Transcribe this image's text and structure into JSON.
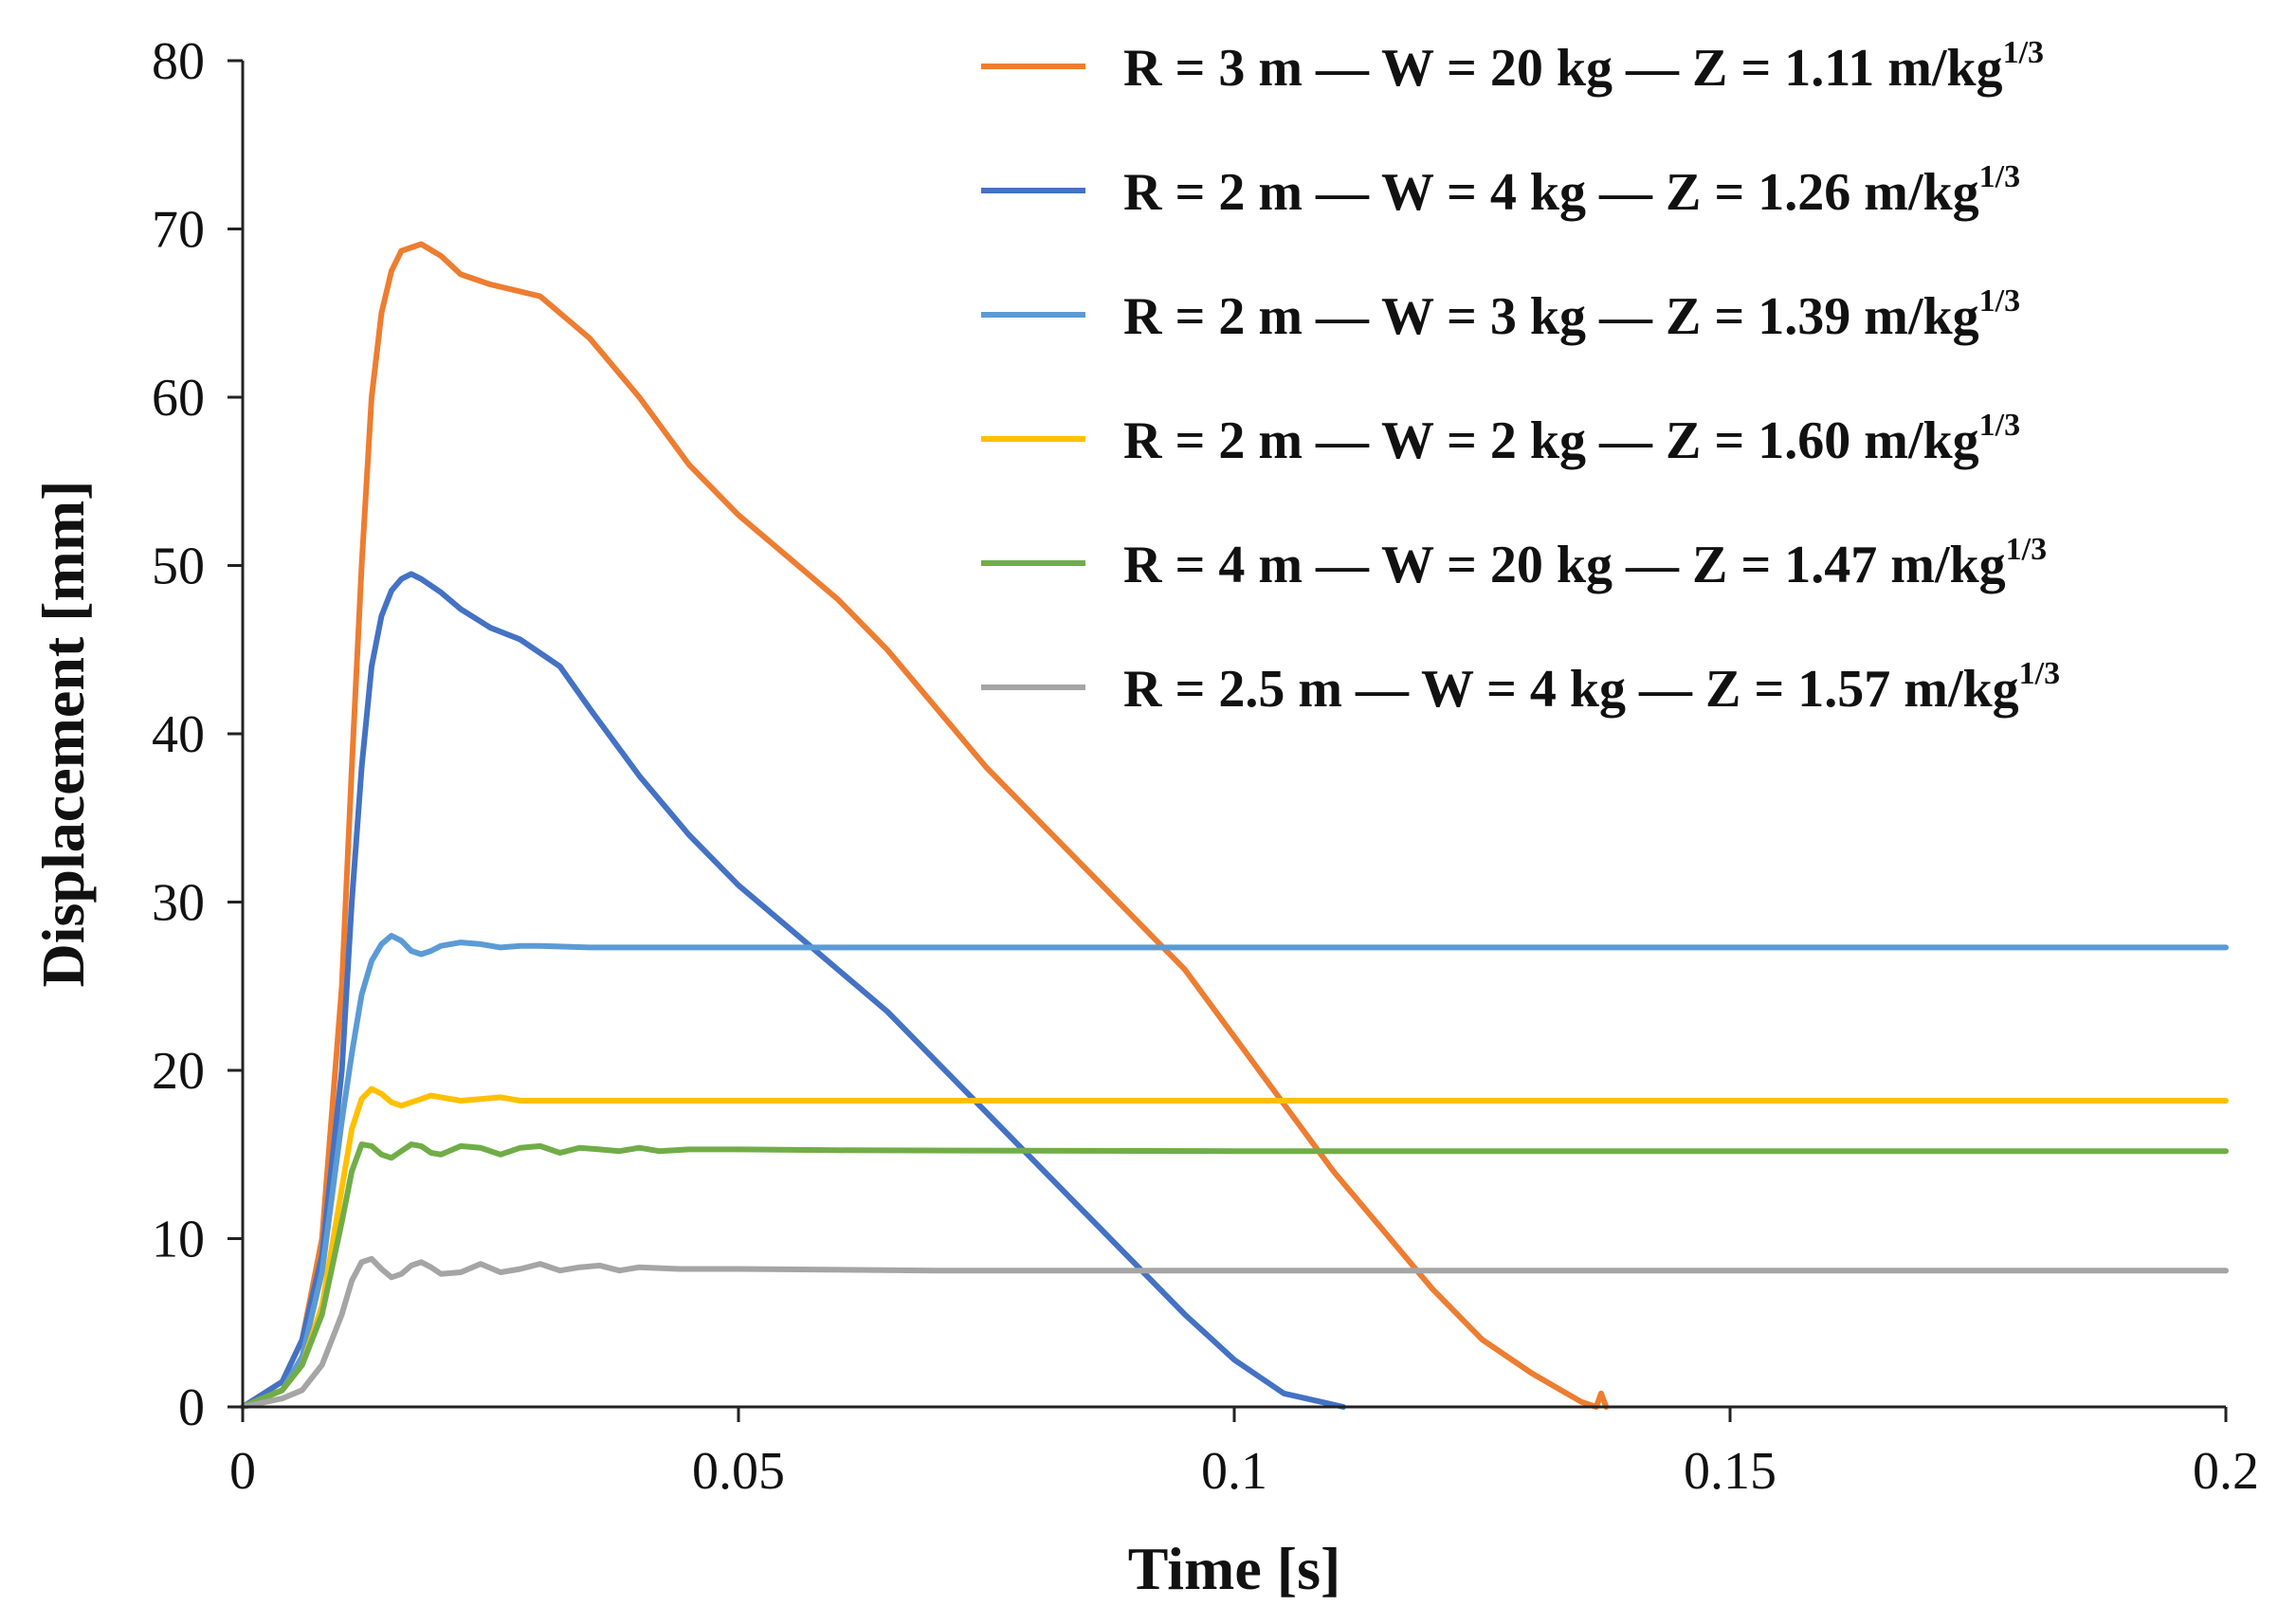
{
  "chart_data": {
    "type": "line",
    "title": "",
    "xlabel": "Time [s]",
    "ylabel": "Displacement [mm]",
    "xlim": [
      0,
      0.2
    ],
    "ylim": [
      0,
      80
    ],
    "x_ticks": [
      0,
      0.05,
      0.1,
      0.15,
      0.2
    ],
    "x_tick_labels": [
      "0",
      "0.05",
      "0.1",
      "0.15",
      "0.2"
    ],
    "y_ticks": [
      0,
      10,
      20,
      30,
      40,
      50,
      60,
      70,
      80
    ],
    "y_tick_labels": [
      "0",
      "10",
      "20",
      "30",
      "40",
      "50",
      "60",
      "70",
      "80"
    ],
    "grid": false,
    "legend_position": "top-right",
    "series": [
      {
        "name": "R = 3 m — W = 20 kg — Z = 1.11 m/kg",
        "name_sup": "1/3",
        "color": "#ED7D31",
        "points": [
          [
            0,
            0
          ],
          [
            0.004,
            1.5
          ],
          [
            0.006,
            4
          ],
          [
            0.008,
            10
          ],
          [
            0.01,
            25
          ],
          [
            0.011,
            38
          ],
          [
            0.012,
            50
          ],
          [
            0.013,
            60
          ],
          [
            0.014,
            65
          ],
          [
            0.015,
            67.5
          ],
          [
            0.016,
            68.7
          ],
          [
            0.018,
            69.1
          ],
          [
            0.02,
            68.4
          ],
          [
            0.022,
            67.3
          ],
          [
            0.025,
            66.7
          ],
          [
            0.03,
            66.0
          ],
          [
            0.035,
            63.5
          ],
          [
            0.04,
            60
          ],
          [
            0.045,
            56
          ],
          [
            0.05,
            53
          ],
          [
            0.055,
            50.5
          ],
          [
            0.06,
            48
          ],
          [
            0.065,
            45
          ],
          [
            0.07,
            41.5
          ],
          [
            0.075,
            38
          ],
          [
            0.08,
            35
          ],
          [
            0.085,
            32
          ],
          [
            0.09,
            29
          ],
          [
            0.095,
            26
          ],
          [
            0.1,
            22
          ],
          [
            0.105,
            18
          ],
          [
            0.11,
            14
          ],
          [
            0.115,
            10.5
          ],
          [
            0.12,
            7
          ],
          [
            0.125,
            4
          ],
          [
            0.13,
            2
          ],
          [
            0.135,
            0.3
          ],
          [
            0.1365,
            0
          ],
          [
            0.137,
            0.8
          ],
          [
            0.1375,
            0
          ]
        ]
      },
      {
        "name": "R = 2 m — W = 4 kg — Z = 1.26 m/kg",
        "name_sup": "1/3",
        "color": "#4472C4",
        "points": [
          [
            0,
            0
          ],
          [
            0.004,
            1.5
          ],
          [
            0.006,
            4
          ],
          [
            0.008,
            9
          ],
          [
            0.01,
            20
          ],
          [
            0.011,
            30
          ],
          [
            0.012,
            38
          ],
          [
            0.013,
            44
          ],
          [
            0.014,
            47
          ],
          [
            0.015,
            48.5
          ],
          [
            0.016,
            49.2
          ],
          [
            0.017,
            49.5
          ],
          [
            0.018,
            49.2
          ],
          [
            0.02,
            48.4
          ],
          [
            0.022,
            47.4
          ],
          [
            0.025,
            46.3
          ],
          [
            0.028,
            45.6
          ],
          [
            0.032,
            44
          ],
          [
            0.035,
            41.5
          ],
          [
            0.04,
            37.5
          ],
          [
            0.045,
            34
          ],
          [
            0.05,
            31
          ],
          [
            0.055,
            28.5
          ],
          [
            0.06,
            26
          ],
          [
            0.065,
            23.5
          ],
          [
            0.07,
            20.5
          ],
          [
            0.075,
            17.5
          ],
          [
            0.08,
            14.5
          ],
          [
            0.085,
            11.5
          ],
          [
            0.09,
            8.5
          ],
          [
            0.095,
            5.5
          ],
          [
            0.1,
            2.8
          ],
          [
            0.105,
            0.8
          ],
          [
            0.111,
            0
          ]
        ]
      },
      {
        "name": "R = 2 m — W = 3 kg — Z = 1.39 m/kg",
        "name_sup": "1/3",
        "color": "#5B9BD5",
        "points": [
          [
            0,
            0
          ],
          [
            0.004,
            1
          ],
          [
            0.006,
            3
          ],
          [
            0.008,
            8
          ],
          [
            0.01,
            17
          ],
          [
            0.011,
            21
          ],
          [
            0.012,
            24.5
          ],
          [
            0.013,
            26.5
          ],
          [
            0.014,
            27.5
          ],
          [
            0.015,
            28
          ],
          [
            0.016,
            27.7
          ],
          [
            0.017,
            27.1
          ],
          [
            0.018,
            26.9
          ],
          [
            0.019,
            27.1
          ],
          [
            0.02,
            27.4
          ],
          [
            0.022,
            27.6
          ],
          [
            0.024,
            27.5
          ],
          [
            0.026,
            27.3
          ],
          [
            0.028,
            27.4
          ],
          [
            0.03,
            27.4
          ],
          [
            0.035,
            27.3
          ],
          [
            0.05,
            27.3
          ],
          [
            0.1,
            27.3
          ],
          [
            0.15,
            27.3
          ],
          [
            0.2,
            27.3
          ]
        ]
      },
      {
        "name": "R = 2 m — W = 2 kg — Z = 1.60 m/kg",
        "name_sup": "1/3",
        "color": "#FFC000",
        "points": [
          [
            0,
            0
          ],
          [
            0.004,
            1
          ],
          [
            0.006,
            2.5
          ],
          [
            0.008,
            6
          ],
          [
            0.01,
            13
          ],
          [
            0.011,
            16.5
          ],
          [
            0.012,
            18.3
          ],
          [
            0.013,
            18.9
          ],
          [
            0.014,
            18.6
          ],
          [
            0.015,
            18.1
          ],
          [
            0.016,
            17.9
          ],
          [
            0.017,
            18.1
          ],
          [
            0.018,
            18.3
          ],
          [
            0.019,
            18.5
          ],
          [
            0.02,
            18.4
          ],
          [
            0.022,
            18.2
          ],
          [
            0.024,
            18.3
          ],
          [
            0.026,
            18.4
          ],
          [
            0.028,
            18.2
          ],
          [
            0.03,
            18.2
          ],
          [
            0.05,
            18.2
          ],
          [
            0.1,
            18.2
          ],
          [
            0.15,
            18.2
          ],
          [
            0.2,
            18.2
          ]
        ]
      },
      {
        "name": "R = 4 m — W = 20 kg — Z = 1.47 m/kg",
        "name_sup": "1/3",
        "color": "#70AD47",
        "points": [
          [
            0,
            0
          ],
          [
            0.004,
            1
          ],
          [
            0.006,
            2.5
          ],
          [
            0.008,
            5.5
          ],
          [
            0.01,
            11
          ],
          [
            0.011,
            14
          ],
          [
            0.012,
            15.6
          ],
          [
            0.013,
            15.5
          ],
          [
            0.014,
            15
          ],
          [
            0.015,
            14.8
          ],
          [
            0.016,
            15.2
          ],
          [
            0.017,
            15.6
          ],
          [
            0.018,
            15.5
          ],
          [
            0.019,
            15.1
          ],
          [
            0.02,
            15
          ],
          [
            0.022,
            15.5
          ],
          [
            0.024,
            15.4
          ],
          [
            0.026,
            15
          ],
          [
            0.028,
            15.4
          ],
          [
            0.03,
            15.5
          ],
          [
            0.032,
            15.1
          ],
          [
            0.034,
            15.4
          ],
          [
            0.036,
            15.3
          ],
          [
            0.038,
            15.2
          ],
          [
            0.04,
            15.4
          ],
          [
            0.042,
            15.2
          ],
          [
            0.045,
            15.3
          ],
          [
            0.05,
            15.3
          ],
          [
            0.06,
            15.25
          ],
          [
            0.1,
            15.2
          ],
          [
            0.15,
            15.2
          ],
          [
            0.2,
            15.2
          ]
        ]
      },
      {
        "name": "R = 2.5 m — W = 4 kg — Z = 1.57 m/kg",
        "name_sup": "1/3",
        "color": "#A5A5A5",
        "points": [
          [
            0,
            0
          ],
          [
            0.004,
            0.5
          ],
          [
            0.006,
            1
          ],
          [
            0.008,
            2.5
          ],
          [
            0.01,
            5.5
          ],
          [
            0.011,
            7.5
          ],
          [
            0.012,
            8.6
          ],
          [
            0.013,
            8.8
          ],
          [
            0.014,
            8.2
          ],
          [
            0.015,
            7.7
          ],
          [
            0.016,
            7.9
          ],
          [
            0.017,
            8.4
          ],
          [
            0.018,
            8.6
          ],
          [
            0.019,
            8.3
          ],
          [
            0.02,
            7.9
          ],
          [
            0.022,
            8.0
          ],
          [
            0.024,
            8.5
          ],
          [
            0.026,
            8.0
          ],
          [
            0.028,
            8.2
          ],
          [
            0.03,
            8.5
          ],
          [
            0.032,
            8.1
          ],
          [
            0.034,
            8.3
          ],
          [
            0.036,
            8.4
          ],
          [
            0.038,
            8.1
          ],
          [
            0.04,
            8.3
          ],
          [
            0.044,
            8.2
          ],
          [
            0.05,
            8.2
          ],
          [
            0.07,
            8.1
          ],
          [
            0.1,
            8.1
          ],
          [
            0.15,
            8.1
          ],
          [
            0.2,
            8.1
          ]
        ]
      }
    ]
  }
}
